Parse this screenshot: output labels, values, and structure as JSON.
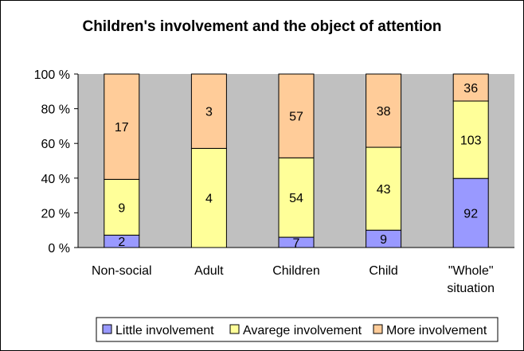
{
  "chart_data": {
    "type": "bar",
    "stacked": true,
    "normalized": true,
    "title": "Children's involvement and the object of attention",
    "categories": [
      "Non-social",
      "Adult",
      "Children",
      "Child",
      "\"Whole\" situation"
    ],
    "series": [
      {
        "name": "Little involvement",
        "color": "#9999ff",
        "values": [
          2,
          0,
          7,
          9,
          92
        ]
      },
      {
        "name": "Avarege involvement",
        "color": "#ffff99",
        "values": [
          9,
          4,
          54,
          43,
          103
        ]
      },
      {
        "name": "More involvement",
        "color": "#ffcc99",
        "values": [
          17,
          3,
          57,
          38,
          36
        ]
      }
    ],
    "ylim": [
      0,
      100
    ],
    "yticks": [
      "0 %",
      "20 %",
      "40 %",
      "60 %",
      "80 %",
      "100 %"
    ],
    "grid": false,
    "legend_position": "bottom-right",
    "plot_background": "#c0c0c0"
  }
}
